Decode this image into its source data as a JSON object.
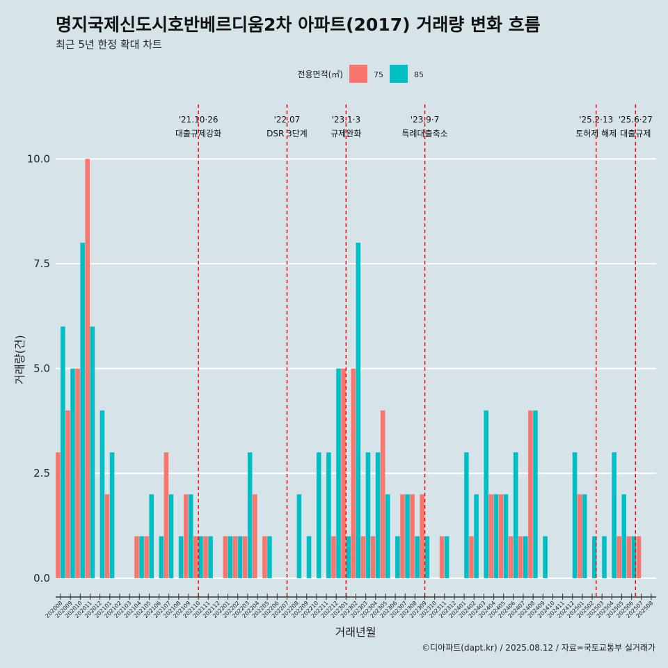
{
  "chart_data": {
    "type": "bar",
    "title": "명지국제신도시호반베르디움2차 아파트(2017) 거래량 변화 흐름",
    "subtitle": "최근 5년 한정 확대 차트",
    "xlabel": "거래년월",
    "ylabel": "거래량(건)",
    "ylim": [
      -0.45,
      11.3
    ],
    "yticks": [
      "0.0",
      "2.5",
      "5.0",
      "7.5",
      "10.0"
    ],
    "ytick_values": [
      0,
      2.5,
      5,
      7.5,
      10
    ],
    "legend": {
      "title": "전용면적(㎡)",
      "position": "top"
    },
    "colors": {
      "75": "#f8766d",
      "85": "#00bfc4",
      "vline": "#ff0000",
      "grid": "#ffffff",
      "background": "#d6e4ea"
    },
    "categories": [
      "202008",
      "202009",
      "202010",
      "202011",
      "202012",
      "202101",
      "202102",
      "202103",
      "202104",
      "202105",
      "202106",
      "202107",
      "202108",
      "202109",
      "202110",
      "202111",
      "202112",
      "202201",
      "202202",
      "202203",
      "202204",
      "202205",
      "202206",
      "202207",
      "202208",
      "202209",
      "202210",
      "202211",
      "202212",
      "202301",
      "202302",
      "202303",
      "202304",
      "202305",
      "202306",
      "202307",
      "202308",
      "202309",
      "202310",
      "202311",
      "202312",
      "202401",
      "202402",
      "202403",
      "202404",
      "202405",
      "202406",
      "202407",
      "202408",
      "202409",
      "202410",
      "202411",
      "202412",
      "202501",
      "202502",
      "202503",
      "202504",
      "202505",
      "202506",
      "202507",
      "202508"
    ],
    "series": [
      {
        "name": "75",
        "values": [
          3,
          4,
          5,
          10,
          0,
          2,
          0,
          0,
          1,
          1,
          0,
          3,
          0,
          2,
          1,
          1,
          0,
          1,
          1,
          1,
          2,
          1,
          0,
          0,
          0,
          0,
          0,
          0,
          1,
          5,
          5,
          1,
          1,
          4,
          0,
          2,
          2,
          2,
          0,
          1,
          0,
          0,
          1,
          0,
          2,
          2,
          1,
          1,
          4,
          0,
          0,
          0,
          0,
          2,
          0,
          0,
          0,
          1,
          1,
          1,
          0
        ]
      },
      {
        "name": "85",
        "values": [
          6,
          5,
          8,
          6,
          4,
          3,
          0,
          0,
          1,
          2,
          1,
          2,
          1,
          2,
          1,
          1,
          0,
          1,
          1,
          3,
          0,
          1,
          0,
          0,
          2,
          1,
          3,
          3,
          5,
          1,
          8,
          3,
          3,
          2,
          1,
          2,
          1,
          1,
          0,
          1,
          0,
          3,
          2,
          4,
          2,
          2,
          3,
          1,
          4,
          1,
          0,
          0,
          3,
          2,
          1,
          1,
          3,
          2,
          1,
          0,
          0
        ]
      }
    ],
    "annotations": [
      {
        "index": 14.0,
        "line1": "'21.10·26",
        "line2": "대출규제강화"
      },
      {
        "index": 23.0,
        "line1": "'22.07",
        "line2": "DSR 3단계"
      },
      {
        "index": 29.0,
        "line1": "'23.1·3",
        "line2": "규제완화"
      },
      {
        "index": 37.0,
        "line1": "'23.9·7",
        "line2": "특례대출축소"
      },
      {
        "index": 54.4,
        "line1": "'25.2·13",
        "line2": "토허제 해제"
      },
      {
        "index": 58.4,
        "line1": "'25.6·27",
        "line2": "대출규제"
      }
    ],
    "caption": "©디아파트(dapt.kr) / 2025.08.12 / 자료=국토교통부 실거래가"
  }
}
